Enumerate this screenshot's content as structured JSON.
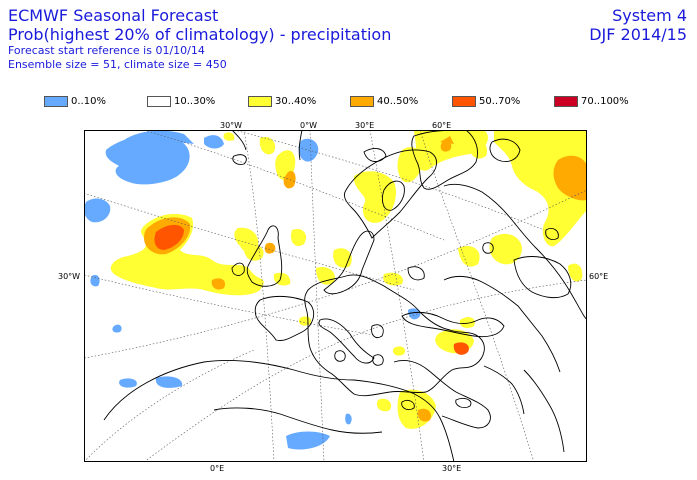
{
  "header": {
    "title": "ECMWF Seasonal Forecast",
    "subtitle": "Prob(highest 20% of climatology) - precipitation",
    "start_reference": "Forecast start reference is 01/10/14",
    "ensemble": "Ensemble size = 51, climate size = 450",
    "system": "System 4",
    "season": "DJF 2014/15"
  },
  "legend": [
    {
      "label": "0..10%",
      "color": "#66aaff"
    },
    {
      "label": "10..30%",
      "color": "#ffffff"
    },
    {
      "label": "30..40%",
      "color": "#ffff33"
    },
    {
      "label": "40..50%",
      "color": "#ffaa00"
    },
    {
      "label": "50..70%",
      "color": "#ff5500"
    },
    {
      "label": "70..100%",
      "color": "#cc0022"
    }
  ],
  "map_labels": {
    "top": [
      "30°W",
      "0°W",
      "30°E",
      "60°E"
    ],
    "left": "30°W",
    "right": "60°E",
    "bottom": [
      "0°E",
      "30°E"
    ]
  }
}
